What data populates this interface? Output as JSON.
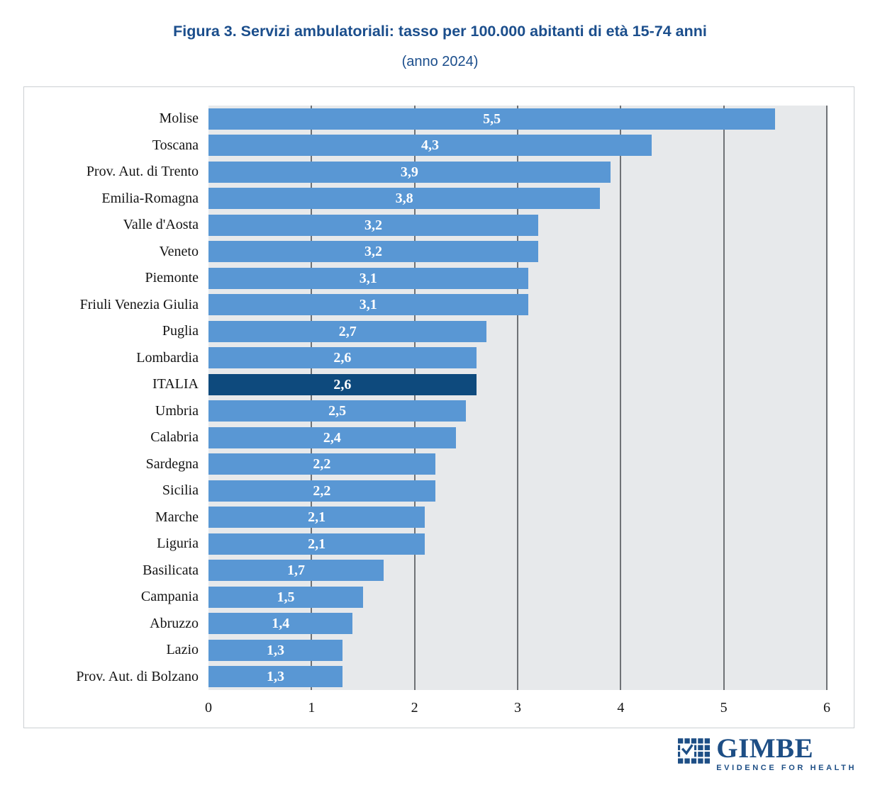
{
  "title": "Figura 3. Servizi ambulatoriali: tasso per 100.000 abitanti di età 15-74 anni",
  "subtitle": "(anno 2024)",
  "chart_data": {
    "type": "bar",
    "orientation": "horizontal",
    "title": "Figura 3. Servizi ambulatoriali: tasso per 100.000 abitanti di età 15-74 anni (anno 2024)",
    "xlabel": "",
    "ylabel": "",
    "xlim": [
      0,
      6
    ],
    "x_ticks": [
      0,
      1,
      2,
      3,
      4,
      5,
      6
    ],
    "grid": "vertical",
    "categories": [
      "Molise",
      "Toscana",
      "Prov. Aut. di Trento",
      "Emilia-Romagna",
      "Valle d'Aosta",
      "Veneto",
      "Piemonte",
      "Friuli Venezia Giulia",
      "Puglia",
      "Lombardia",
      "ITALIA",
      "Umbria",
      "Calabria",
      "Sardegna",
      "Sicilia",
      "Marche",
      "Liguria",
      "Basilicata",
      "Campania",
      "Abruzzo",
      "Lazio",
      "Prov. Aut. di Bolzano"
    ],
    "values": [
      5.5,
      4.3,
      3.9,
      3.8,
      3.2,
      3.2,
      3.1,
      3.1,
      2.7,
      2.6,
      2.6,
      2.5,
      2.4,
      2.2,
      2.2,
      2.1,
      2.1,
      1.7,
      1.5,
      1.4,
      1.3,
      1.3
    ],
    "value_labels": [
      "5,5",
      "4,3",
      "3,9",
      "3,8",
      "3,2",
      "3,2",
      "3,1",
      "3,1",
      "2,7",
      "2,6",
      "2,6",
      "2,5",
      "2,4",
      "2,2",
      "2,2",
      "2,1",
      "2,1",
      "1,7",
      "1,5",
      "1,4",
      "1,3",
      "1,3"
    ],
    "highlight_category": "ITALIA",
    "colors": {
      "bar": "#5997d4",
      "highlight": "#0e4a7d",
      "plot_bg": "#e7e9eb",
      "gridline": "#6f7276",
      "title": "#1b4e8c",
      "logo": "#1d4e85"
    }
  },
  "logo": {
    "name": "GIMBE",
    "tagline": "EVIDENCE FOR HEALTH"
  }
}
